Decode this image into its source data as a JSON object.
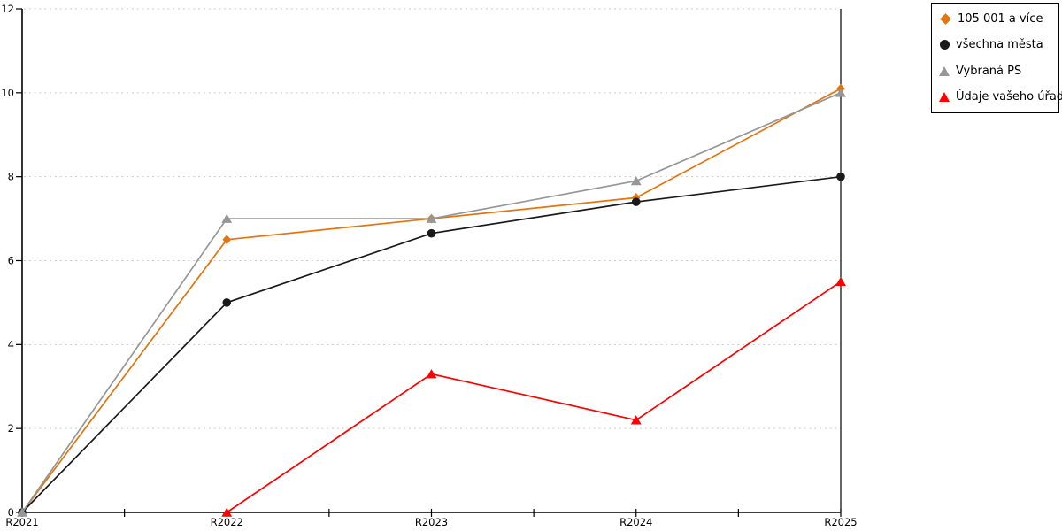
{
  "chart_data": {
    "type": "line",
    "title": "",
    "xlabel": "",
    "ylabel": "",
    "categories": [
      "R2021",
      "R2022",
      "R2023",
      "R2024",
      "R2025"
    ],
    "series": [
      {
        "name": "105 001 a více",
        "marker": "diamond",
        "color": "#E2750E",
        "values": [
          0,
          6.5,
          7.0,
          7.5,
          10.1
        ]
      },
      {
        "name": "všechna města",
        "marker": "circle",
        "color": "#1A1A1A",
        "values": [
          0,
          5.0,
          6.65,
          7.4,
          8.0
        ]
      },
      {
        "name": "Vybraná PS",
        "marker": "triangle",
        "color": "#979797",
        "values": [
          0,
          7.0,
          7.0,
          7.9,
          10.0
        ]
      },
      {
        "name": "Údaje vašeho úřadu",
        "marker": "triangle",
        "color": "#FF0000",
        "values": [
          null,
          0,
          3.3,
          2.2,
          5.5
        ]
      }
    ],
    "ylim": [
      0,
      12
    ],
    "yticks": [
      0,
      2,
      4,
      6,
      8,
      10,
      12
    ],
    "grid": "horizontal-dotted",
    "grid_color": "#C9C9C9",
    "axis_color": "#000000",
    "legend_position": "top-right",
    "legend_border_color": "#000000",
    "background_color": "#FFFFFF"
  }
}
